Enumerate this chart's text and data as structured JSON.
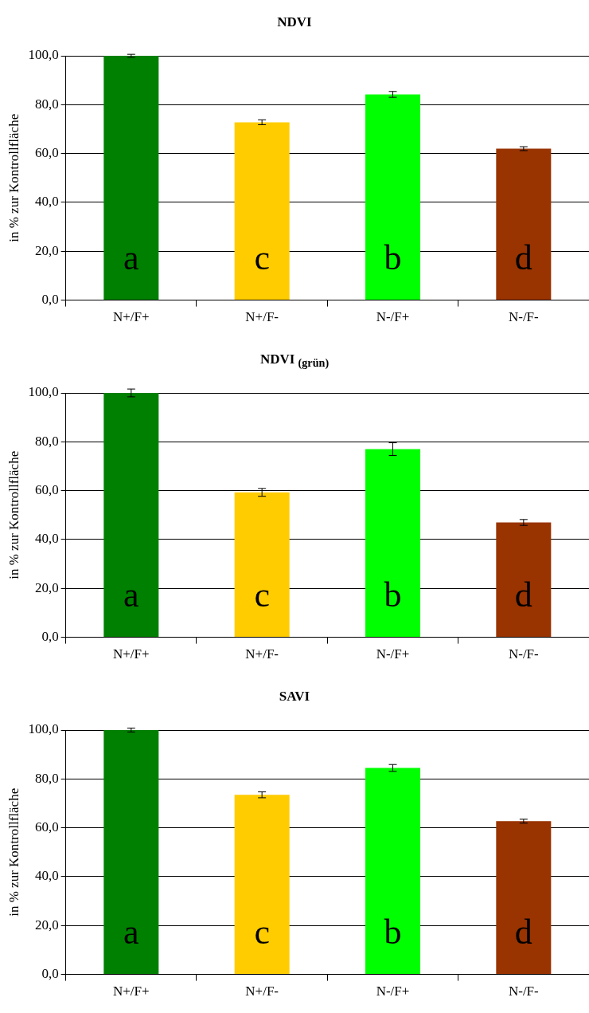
{
  "chart_data": [
    {
      "type": "bar",
      "title": "NDVI",
      "ylabel": "in % zur Kontrollfläche",
      "categories": [
        "N+/F+",
        "N+/F-",
        "N-/F+",
        "N-/F-"
      ],
      "values": [
        100.0,
        72.8,
        84.2,
        62.0
      ],
      "errors": [
        0.6,
        1.0,
        1.2,
        0.8
      ],
      "colors": [
        "#008000",
        "#ffcc00",
        "#00ff00",
        "#993300"
      ],
      "ylim": [
        0,
        100
      ],
      "yticks": [
        {
          "value": 0,
          "label": "0,0"
        },
        {
          "value": 20,
          "label": "20,0"
        },
        {
          "value": 40,
          "label": "40,0"
        },
        {
          "value": 60,
          "label": "60,0"
        },
        {
          "value": 80,
          "label": "80,0"
        },
        {
          "value": 100,
          "label": "100,0"
        }
      ],
      "grid": "y",
      "legend": false,
      "annotations": [
        "a",
        "c",
        "b",
        "d"
      ]
    },
    {
      "type": "bar",
      "title": "NDVI $_{(grün)}$",
      "ylabel": "in % zur Kontrollfläche",
      "categories": [
        "N+/F+",
        "N+/F-",
        "N-/F+",
        "N-/F-"
      ],
      "values": [
        100.0,
        59.3,
        77.0,
        47.0
      ],
      "errors": [
        1.6,
        1.6,
        2.6,
        1.2
      ],
      "colors": [
        "#008000",
        "#ffcc00",
        "#00ff00",
        "#993300"
      ],
      "ylim": [
        0,
        100
      ],
      "yticks": [
        {
          "value": 0,
          "label": "0,0"
        },
        {
          "value": 20,
          "label": "20,0"
        },
        {
          "value": 40,
          "label": "40,0"
        },
        {
          "value": 60,
          "label": "60,0"
        },
        {
          "value": 80,
          "label": "80,0"
        },
        {
          "value": 100,
          "label": "100,0"
        }
      ],
      "grid": "y",
      "legend": false,
      "annotations": [
        "a",
        "c",
        "b",
        "d"
      ]
    },
    {
      "type": "bar",
      "title": "SAVI",
      "ylabel": "in % zur Kontrollfläche",
      "categories": [
        "N+/F+",
        "N+/F-",
        "N-/F+",
        "N-/F-"
      ],
      "values": [
        100.0,
        73.5,
        84.5,
        62.7
      ],
      "errors": [
        0.8,
        1.2,
        1.4,
        0.8
      ],
      "colors": [
        "#008000",
        "#ffcc00",
        "#00ff00",
        "#993300"
      ],
      "ylim": [
        0,
        100
      ],
      "yticks": [
        {
          "value": 0,
          "label": "0,0"
        },
        {
          "value": 20,
          "label": "20,0"
        },
        {
          "value": 40,
          "label": "40,0"
        },
        {
          "value": 60,
          "label": "60,0"
        },
        {
          "value": 80,
          "label": "80,0"
        },
        {
          "value": 100,
          "label": "100,0"
        }
      ],
      "grid": "y",
      "legend": false,
      "annotations": [
        "a",
        "c",
        "b",
        "d"
      ]
    }
  ]
}
